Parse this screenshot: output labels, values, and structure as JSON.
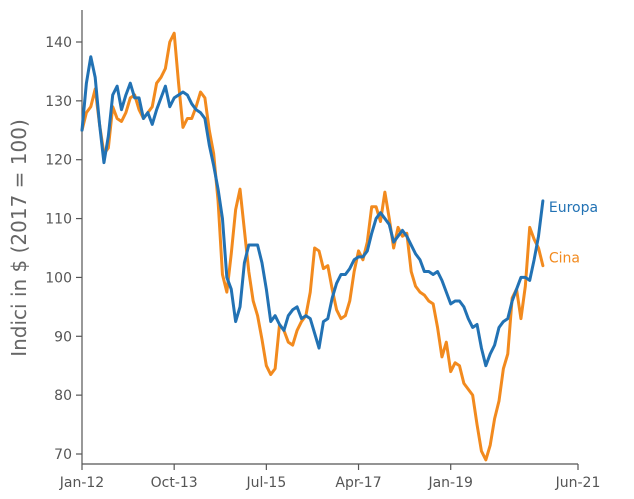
{
  "chart_data": {
    "type": "line",
    "title": "",
    "xlabel": "",
    "ylabel": "Indici in $ (2017 = 100)",
    "ylim": [
      68,
      148
    ],
    "y_ticks": [
      70,
      80,
      90,
      100,
      110,
      120,
      130,
      140
    ],
    "x_ticks": [
      {
        "label": "Jan-12",
        "t": 0
      },
      {
        "label": "Oct-13",
        "t": 21
      },
      {
        "label": "Jul-15",
        "t": 42
      },
      {
        "label": "Apr-17",
        "t": 63
      },
      {
        "label": "Jan-19",
        "t": 84
      },
      {
        "label": "Jun-21",
        "t": 113
      }
    ],
    "x_unit": "months since Jan-12",
    "grid": false,
    "legend_position": "right, at line ends",
    "series": [
      {
        "name": "Europa",
        "color": "#2272b4",
        "points": [
          [
            0,
            125
          ],
          [
            1,
            133
          ],
          [
            2,
            137.5
          ],
          [
            3,
            134
          ],
          [
            4,
            126
          ],
          [
            5,
            119.5
          ],
          [
            6,
            124
          ],
          [
            7,
            131
          ],
          [
            8,
            132.5
          ],
          [
            9,
            128.5
          ],
          [
            10,
            131
          ],
          [
            11,
            133
          ],
          [
            12,
            130.5
          ],
          [
            13,
            130.5
          ],
          [
            14,
            127
          ],
          [
            15,
            128
          ],
          [
            16,
            126
          ],
          [
            17,
            128.5
          ],
          [
            18,
            130.5
          ],
          [
            19,
            132.5
          ],
          [
            20,
            129
          ],
          [
            21,
            130.5
          ],
          [
            22,
            131
          ],
          [
            23,
            131.5
          ],
          [
            24,
            131
          ],
          [
            25,
            129.5
          ],
          [
            26,
            128.5
          ],
          [
            27,
            128
          ],
          [
            28,
            127
          ],
          [
            29,
            122.5
          ],
          [
            30,
            119
          ],
          [
            31,
            115
          ],
          [
            32,
            110
          ],
          [
            33,
            100
          ],
          [
            34,
            98
          ],
          [
            35,
            92.5
          ],
          [
            36,
            95
          ],
          [
            37,
            102.5
          ],
          [
            38,
            105.5
          ],
          [
            39,
            105.5
          ],
          [
            40,
            105.5
          ],
          [
            41,
            102.5
          ],
          [
            42,
            98
          ],
          [
            43,
            92.5
          ],
          [
            44,
            93.5
          ],
          [
            45,
            92
          ],
          [
            46,
            91
          ],
          [
            47,
            93.5
          ],
          [
            48,
            94.5
          ],
          [
            49,
            95
          ],
          [
            50,
            93
          ],
          [
            51,
            93.5
          ],
          [
            52,
            93
          ],
          [
            53,
            90.5
          ],
          [
            54,
            88
          ],
          [
            55,
            92.5
          ],
          [
            56,
            93
          ],
          [
            57,
            96.5
          ],
          [
            58,
            99
          ],
          [
            59,
            100.5
          ],
          [
            60,
            100.5
          ],
          [
            61,
            101.5
          ],
          [
            62,
            103
          ],
          [
            63,
            103.5
          ],
          [
            64,
            103.5
          ],
          [
            65,
            104.5
          ],
          [
            66,
            107.5
          ],
          [
            67,
            110
          ],
          [
            68,
            111
          ],
          [
            69,
            110
          ],
          [
            70,
            109
          ],
          [
            71,
            106
          ],
          [
            72,
            107
          ],
          [
            73,
            108
          ],
          [
            74,
            107
          ],
          [
            75,
            105.5
          ],
          [
            76,
            104
          ],
          [
            77,
            103
          ],
          [
            78,
            101
          ],
          [
            79,
            101
          ],
          [
            80,
            100.5
          ],
          [
            81,
            101
          ],
          [
            82,
            99.5
          ],
          [
            83,
            97.5
          ],
          [
            84,
            95.5
          ],
          [
            85,
            96
          ],
          [
            86,
            96
          ],
          [
            87,
            95
          ],
          [
            88,
            93
          ],
          [
            89,
            91.5
          ],
          [
            90,
            92
          ],
          [
            91,
            88
          ],
          [
            92,
            85
          ],
          [
            93,
            87
          ],
          [
            94,
            88.5
          ],
          [
            95,
            91.5
          ],
          [
            96,
            92.5
          ],
          [
            97,
            93
          ],
          [
            98,
            96
          ],
          [
            99,
            98
          ],
          [
            100,
            100
          ],
          [
            101,
            100
          ],
          [
            102,
            99.5
          ],
          [
            103,
            103
          ],
          [
            104,
            107
          ],
          [
            105,
            113
          ]
        ]
      },
      {
        "name": "Cina",
        "color": "#f28a1e",
        "points": [
          [
            0,
            125
          ],
          [
            1,
            128
          ],
          [
            2,
            129
          ],
          [
            3,
            132
          ],
          [
            4,
            126
          ],
          [
            5,
            121
          ],
          [
            6,
            122
          ],
          [
            7,
            129
          ],
          [
            8,
            127
          ],
          [
            9,
            126.5
          ],
          [
            10,
            128
          ],
          [
            11,
            130.5
          ],
          [
            12,
            131
          ],
          [
            13,
            128.5
          ],
          [
            14,
            127
          ],
          [
            15,
            128
          ],
          [
            16,
            129
          ],
          [
            17,
            133
          ],
          [
            18,
            134
          ],
          [
            19,
            135.5
          ],
          [
            20,
            140
          ],
          [
            21,
            141.5
          ],
          [
            22,
            133
          ],
          [
            23,
            125.5
          ],
          [
            24,
            127
          ],
          [
            25,
            127
          ],
          [
            26,
            129
          ],
          [
            27,
            131.5
          ],
          [
            28,
            130.5
          ],
          [
            29,
            125
          ],
          [
            30,
            121
          ],
          [
            31,
            113
          ],
          [
            32,
            100.5
          ],
          [
            33,
            97.5
          ],
          [
            34,
            104
          ],
          [
            35,
            111.5
          ],
          [
            36,
            115
          ],
          [
            37,
            108
          ],
          [
            38,
            101
          ],
          [
            39,
            96
          ],
          [
            40,
            93.5
          ],
          [
            41,
            89.5
          ],
          [
            42,
            85
          ],
          [
            43,
            83.5
          ],
          [
            44,
            84.5
          ],
          [
            45,
            92
          ],
          [
            46,
            91
          ],
          [
            47,
            89
          ],
          [
            48,
            88.5
          ],
          [
            49,
            91
          ],
          [
            50,
            92.5
          ],
          [
            51,
            93.5
          ],
          [
            52,
            97.5
          ],
          [
            53,
            105
          ],
          [
            54,
            104.5
          ],
          [
            55,
            101.5
          ],
          [
            56,
            102
          ],
          [
            57,
            98
          ],
          [
            58,
            94.5
          ],
          [
            59,
            93
          ],
          [
            60,
            93.5
          ],
          [
            61,
            96
          ],
          [
            62,
            101
          ],
          [
            63,
            104.5
          ],
          [
            64,
            103
          ],
          [
            65,
            106
          ],
          [
            66,
            112
          ],
          [
            67,
            112
          ],
          [
            68,
            109.5
          ],
          [
            69,
            114.5
          ],
          [
            70,
            110
          ],
          [
            71,
            105
          ],
          [
            72,
            108.5
          ],
          [
            73,
            107
          ],
          [
            74,
            107.5
          ],
          [
            75,
            101
          ],
          [
            76,
            98.5
          ],
          [
            77,
            97.5
          ],
          [
            78,
            97
          ],
          [
            79,
            96
          ],
          [
            80,
            95.5
          ],
          [
            81,
            91.5
          ],
          [
            82,
            86.5
          ],
          [
            83,
            89
          ],
          [
            84,
            84
          ],
          [
            85,
            85.5
          ],
          [
            86,
            85
          ],
          [
            87,
            82
          ],
          [
            88,
            81
          ],
          [
            89,
            80
          ],
          [
            90,
            75
          ],
          [
            91,
            70.5
          ],
          [
            92,
            69
          ],
          [
            93,
            71.5
          ],
          [
            94,
            76
          ],
          [
            95,
            79
          ],
          [
            96,
            84.5
          ],
          [
            97,
            87
          ],
          [
            98,
            96.5
          ],
          [
            99,
            98
          ],
          [
            100,
            93
          ],
          [
            101,
            98.5
          ],
          [
            102,
            108.5
          ],
          [
            103,
            106.5
          ],
          [
            104,
            105
          ],
          [
            105,
            102
          ]
        ]
      }
    ]
  }
}
